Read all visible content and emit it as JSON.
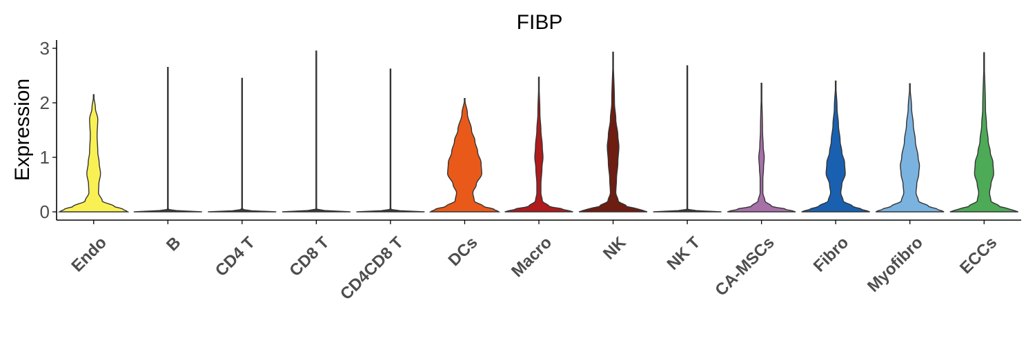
{
  "chart_data": {
    "type": "violin",
    "title": "FIBP",
    "xlabel": "",
    "ylabel": "Expression",
    "ylim": [
      -0.1,
      3.1
    ],
    "yticks": [
      0,
      1,
      2,
      3
    ],
    "yticklabels": [
      "0",
      "1",
      "2",
      "3"
    ],
    "grid": false,
    "legend": "none",
    "groups": [
      {
        "name": "Endo",
        "color": "#F9F154",
        "max": 2.15,
        "profile": [
          [
            0,
            1.0
          ],
          [
            0.05,
            0.85
          ],
          [
            0.1,
            0.6
          ],
          [
            0.2,
            0.25
          ],
          [
            0.35,
            0.14
          ],
          [
            0.5,
            0.15
          ],
          [
            0.7,
            0.2
          ],
          [
            0.9,
            0.16
          ],
          [
            1.1,
            0.12
          ],
          [
            1.4,
            0.1
          ],
          [
            1.7,
            0.12
          ],
          [
            1.9,
            0.05
          ],
          [
            2.15,
            0.0
          ]
        ]
      },
      {
        "name": "B",
        "color": "#3A3A3A",
        "max": 2.65,
        "profile": [
          [
            0,
            1.0
          ],
          [
            0.015,
            0.3
          ],
          [
            0.05,
            0.0
          ],
          [
            2.65,
            0.0
          ]
        ]
      },
      {
        "name": "CD4 T",
        "color": "#3A3A3A",
        "max": 2.45,
        "profile": [
          [
            0,
            1.0
          ],
          [
            0.015,
            0.3
          ],
          [
            0.05,
            0.0
          ],
          [
            2.45,
            0.0
          ]
        ]
      },
      {
        "name": "CD8 T",
        "color": "#3A3A3A",
        "max": 2.95,
        "profile": [
          [
            0,
            1.0
          ],
          [
            0.015,
            0.3
          ],
          [
            0.05,
            0.0
          ],
          [
            2.95,
            0.0
          ]
        ]
      },
      {
        "name": "CD4CD8 T",
        "color": "#3A3A3A",
        "max": 2.62,
        "profile": [
          [
            0,
            1.0
          ],
          [
            0.015,
            0.3
          ],
          [
            0.05,
            0.0
          ],
          [
            2.62,
            0.0
          ]
        ]
      },
      {
        "name": "DCs",
        "color": "#E95A1A",
        "max": 2.08,
        "profile": [
          [
            0,
            1.0
          ],
          [
            0.05,
            0.85
          ],
          [
            0.1,
            0.55
          ],
          [
            0.2,
            0.28
          ],
          [
            0.35,
            0.24
          ],
          [
            0.5,
            0.34
          ],
          [
            0.7,
            0.5
          ],
          [
            0.9,
            0.48
          ],
          [
            1.1,
            0.38
          ],
          [
            1.3,
            0.3
          ],
          [
            1.5,
            0.2
          ],
          [
            1.8,
            0.08
          ],
          [
            2.08,
            0.0
          ]
        ]
      },
      {
        "name": "Macro",
        "color": "#B01B1B",
        "max": 2.47,
        "profile": [
          [
            0,
            1.0
          ],
          [
            0.05,
            0.7
          ],
          [
            0.1,
            0.3
          ],
          [
            0.2,
            0.1
          ],
          [
            0.35,
            0.06
          ],
          [
            0.5,
            0.06
          ],
          [
            0.8,
            0.09
          ],
          [
            1.0,
            0.12
          ],
          [
            1.2,
            0.1
          ],
          [
            1.5,
            0.06
          ],
          [
            1.8,
            0.03
          ],
          [
            2.47,
            0.0
          ]
        ]
      },
      {
        "name": "NK",
        "color": "#6E1D12",
        "max": 2.93,
        "profile": [
          [
            0,
            1.0
          ],
          [
            0.05,
            0.75
          ],
          [
            0.1,
            0.4
          ],
          [
            0.2,
            0.15
          ],
          [
            0.35,
            0.08
          ],
          [
            0.6,
            0.1
          ],
          [
            0.9,
            0.14
          ],
          [
            1.2,
            0.17
          ],
          [
            1.4,
            0.14
          ],
          [
            1.7,
            0.08
          ],
          [
            2.0,
            0.04
          ],
          [
            2.93,
            0.0
          ]
        ]
      },
      {
        "name": "NK T",
        "color": "#3A3A3A",
        "max": 2.68,
        "profile": [
          [
            0,
            1.0
          ],
          [
            0.015,
            0.3
          ],
          [
            0.05,
            0.0
          ],
          [
            2.68,
            0.0
          ]
        ]
      },
      {
        "name": "CA-MSCs",
        "color": "#A770A8",
        "max": 2.36,
        "profile": [
          [
            0,
            1.0
          ],
          [
            0.05,
            0.7
          ],
          [
            0.1,
            0.3
          ],
          [
            0.2,
            0.1
          ],
          [
            0.35,
            0.04
          ],
          [
            0.6,
            0.04
          ],
          [
            0.8,
            0.06
          ],
          [
            1.0,
            0.08
          ],
          [
            1.2,
            0.05
          ],
          [
            1.5,
            0.03
          ],
          [
            2.36,
            0.0
          ]
        ]
      },
      {
        "name": "Fibro",
        "color": "#1961B0",
        "max": 2.4,
        "profile": [
          [
            0,
            1.0
          ],
          [
            0.05,
            0.75
          ],
          [
            0.1,
            0.5
          ],
          [
            0.2,
            0.22
          ],
          [
            0.35,
            0.15
          ],
          [
            0.5,
            0.18
          ],
          [
            0.7,
            0.28
          ],
          [
            0.9,
            0.26
          ],
          [
            1.1,
            0.18
          ],
          [
            1.3,
            0.13
          ],
          [
            1.6,
            0.08
          ],
          [
            1.9,
            0.04
          ],
          [
            2.4,
            0.0
          ]
        ]
      },
      {
        "name": "Myofibro",
        "color": "#7AB3E0",
        "max": 2.35,
        "profile": [
          [
            0,
            1.0
          ],
          [
            0.05,
            0.8
          ],
          [
            0.1,
            0.55
          ],
          [
            0.2,
            0.25
          ],
          [
            0.35,
            0.18
          ],
          [
            0.5,
            0.2
          ],
          [
            0.7,
            0.26
          ],
          [
            0.85,
            0.28
          ],
          [
            1.0,
            0.24
          ],
          [
            1.3,
            0.16
          ],
          [
            1.6,
            0.1
          ],
          [
            1.9,
            0.05
          ],
          [
            2.35,
            0.0
          ]
        ]
      },
      {
        "name": "ECCs",
        "color": "#4DAA57",
        "max": 2.92,
        "profile": [
          [
            0,
            1.0
          ],
          [
            0.05,
            0.75
          ],
          [
            0.1,
            0.45
          ],
          [
            0.2,
            0.2
          ],
          [
            0.35,
            0.16
          ],
          [
            0.5,
            0.2
          ],
          [
            0.7,
            0.28
          ],
          [
            0.9,
            0.26
          ],
          [
            1.1,
            0.18
          ],
          [
            1.3,
            0.12
          ],
          [
            1.6,
            0.07
          ],
          [
            1.9,
            0.04
          ],
          [
            2.92,
            0.0
          ]
        ]
      }
    ]
  }
}
